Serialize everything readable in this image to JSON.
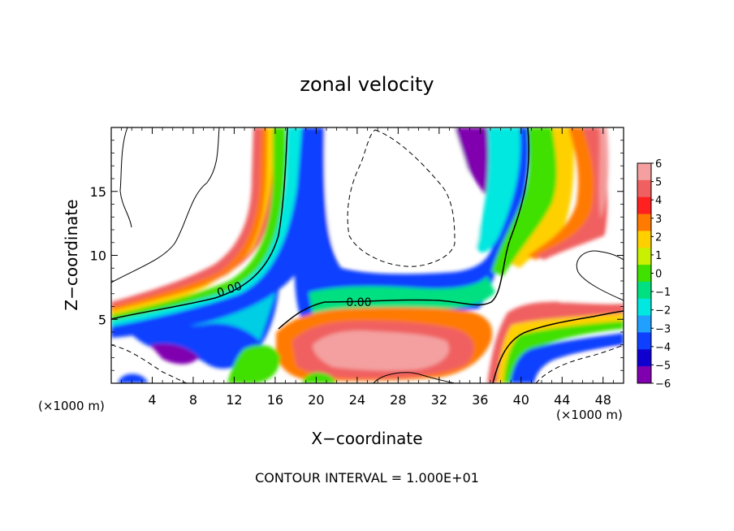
{
  "chart_data": {
    "type": "heatmap",
    "title": "zonal velocity",
    "xlabel": "X−coordinate",
    "ylabel": "Z−coordinate",
    "x_unit_left": "(×1000 m)",
    "x_unit_right": "(×1000 m)",
    "footer": "CONTOUR INTERVAL = 1.000E+01",
    "xlim": [
      0,
      50
    ],
    "ylim": [
      0,
      20
    ],
    "x_ticks": [
      4,
      8,
      12,
      16,
      20,
      24,
      28,
      32,
      36,
      40,
      44,
      48
    ],
    "y_ticks": [
      5,
      10,
      15
    ],
    "grid": false,
    "colorbar": {
      "levels": [
        6,
        5,
        4,
        3,
        2,
        1,
        0,
        -1,
        -2,
        -3,
        -4,
        -5,
        -6
      ],
      "labels": [
        "6",
        "5",
        "4",
        "3",
        "2",
        "1",
        "0",
        "−1",
        "−2",
        "−3",
        "−4",
        "−5",
        "−6"
      ],
      "colors": [
        "#f4a0a0",
        "#f06060",
        "#ff2020",
        "#ff7a00",
        "#ffd000",
        "#c8f000",
        "#40e000",
        "#00e080",
        "#00e8e0",
        "#20a0ff",
        "#1040ff",
        "#1000d0",
        "#8000b0"
      ]
    },
    "contour_labels": [
      {
        "text": "0.00",
        "x": 9.5,
        "y": 7.1
      },
      {
        "text": "0.00",
        "x": 23.5,
        "y": 6.4
      }
    ]
  }
}
